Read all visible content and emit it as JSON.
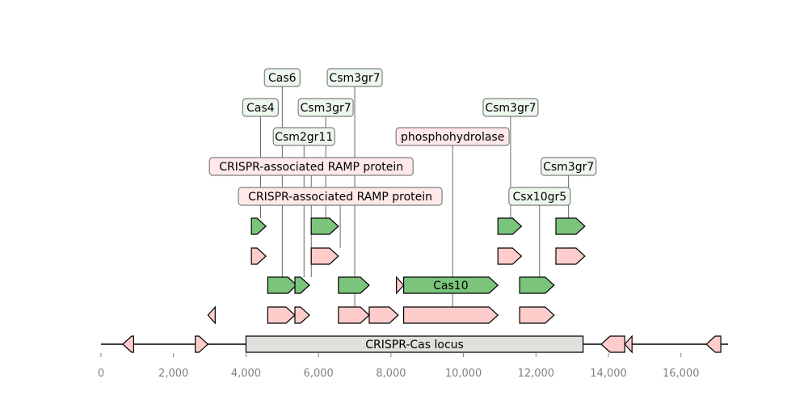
{
  "axis": {
    "ticks": [
      {
        "value": 0,
        "label": "0"
      },
      {
        "value": 2000,
        "label": "2,000"
      },
      {
        "value": 4000,
        "label": "4,000"
      },
      {
        "value": 6000,
        "label": "6,000"
      },
      {
        "value": 8000,
        "label": "8,000"
      },
      {
        "value": 10000,
        "label": "10,000"
      },
      {
        "value": 12000,
        "label": "12,000"
      },
      {
        "value": 14000,
        "label": "14,000"
      },
      {
        "value": 16000,
        "label": "16,000"
      }
    ],
    "start": 0,
    "end": 17300
  },
  "colors": {
    "green": "#7bc47b",
    "pink": "#ffcccc",
    "grey": "#e2e0dc",
    "green_label_bg": "#edf7ed",
    "pink_label_bg": "#ffe8e8",
    "label_border": "#7f7f7f",
    "tick_text": "#808080"
  },
  "backbone": [
    {
      "name": "",
      "start": 600,
      "end": 900,
      "strand": -1,
      "color": "pink"
    },
    {
      "name": "",
      "start": 2600,
      "end": 2950,
      "strand": 1,
      "color": "pink"
    },
    {
      "name": "CRISPR-Cas locus",
      "start": 4000,
      "end": 13300,
      "strand": 0,
      "color": "grey"
    },
    {
      "name": "",
      "start": 13800,
      "end": 14450,
      "strand": -1,
      "color": "pink"
    },
    {
      "name": "",
      "start": 14450,
      "end": 14650,
      "strand": -1,
      "color": "pink"
    },
    {
      "name": "",
      "start": 16700,
      "end": 17100,
      "strand": -1,
      "color": "pink"
    }
  ],
  "features": [
    {
      "level": 1,
      "name": "",
      "start": 2950,
      "end": 3150,
      "strand": -1,
      "color": "pink"
    },
    {
      "level": 1,
      "name": "",
      "start": 4600,
      "end": 5350,
      "strand": 1,
      "color": "pink"
    },
    {
      "level": 1,
      "name": "",
      "start": 5350,
      "end": 5750,
      "strand": 1,
      "color": "pink"
    },
    {
      "level": 1,
      "name": "",
      "start": 6550,
      "end": 7400,
      "strand": 1,
      "color": "pink"
    },
    {
      "level": 1,
      "name": "",
      "start": 7400,
      "end": 8200,
      "strand": 1,
      "color": "pink"
    },
    {
      "level": 1,
      "name": "",
      "start": 8350,
      "end": 10950,
      "strand": 1,
      "color": "pink"
    },
    {
      "level": 1,
      "name": "",
      "start": 11550,
      "end": 12500,
      "strand": 1,
      "color": "pink"
    },
    {
      "level": 2,
      "name": "",
      "start": 4600,
      "end": 5400,
      "strand": 1,
      "color": "green"
    },
    {
      "level": 2,
      "name": "",
      "start": 5350,
      "end": 5750,
      "strand": 1,
      "color": "green"
    },
    {
      "level": 2,
      "name": "",
      "start": 6550,
      "end": 7400,
      "strand": 1,
      "color": "green"
    },
    {
      "level": 2,
      "name": "",
      "start": 8150,
      "end": 8350,
      "strand": 1,
      "color": "pink"
    },
    {
      "level": 2,
      "name": "Cas10",
      "start": 8350,
      "end": 10950,
      "strand": 1,
      "color": "green"
    },
    {
      "level": 2,
      "name": "",
      "start": 11550,
      "end": 12500,
      "strand": 1,
      "color": "green"
    },
    {
      "level": 3,
      "name": "",
      "start": 4150,
      "end": 4550,
      "strand": 1,
      "color": "pink"
    },
    {
      "level": 3,
      "name": "",
      "start": 5800,
      "end": 6550,
      "strand": 1,
      "color": "pink"
    },
    {
      "level": 3,
      "name": "",
      "start": 10950,
      "end": 11600,
      "strand": 1,
      "color": "pink"
    },
    {
      "level": 3,
      "name": "",
      "start": 12550,
      "end": 13350,
      "strand": 1,
      "color": "pink"
    },
    {
      "level": 4,
      "name": "",
      "start": 4150,
      "end": 4550,
      "strand": 1,
      "color": "green"
    },
    {
      "level": 4,
      "name": "",
      "start": 5800,
      "end": 6550,
      "strand": 1,
      "color": "green"
    },
    {
      "level": 4,
      "name": "",
      "start": 10950,
      "end": 11600,
      "strand": 1,
      "color": "green"
    },
    {
      "level": 4,
      "name": "",
      "start": 12550,
      "end": 13350,
      "strand": 1,
      "color": "green"
    }
  ],
  "annotations": [
    {
      "text": "Cas6",
      "position": 5000,
      "anchor_level": 2,
      "row": 9,
      "color": "green"
    },
    {
      "text": "Csm3gr7",
      "position": 7000,
      "anchor_level": 1,
      "row": 9,
      "color": "green"
    },
    {
      "text": "Cas4",
      "position": 4400,
      "anchor_level": 4,
      "row": 8,
      "color": "green"
    },
    {
      "text": "Csm3gr7",
      "position": 6200,
      "anchor_level": 4,
      "row": 8,
      "color": "green"
    },
    {
      "text": "Csm3gr7",
      "position": 11300,
      "anchor_level": 4,
      "row": 8,
      "color": "green"
    },
    {
      "text": "Csm2gr11",
      "position": 5600,
      "anchor_level": 2,
      "row": 7,
      "color": "green"
    },
    {
      "text": "phosphohydrolase",
      "position": 9700,
      "anchor_level": 1,
      "row": 7,
      "color": "pink"
    },
    {
      "text": "CRISPR-associated RAMP protein",
      "position": 5800,
      "anchor_level": 2,
      "row": 6,
      "color": "pink"
    },
    {
      "text": "Csm3gr7",
      "position": 12900,
      "anchor_level": 4,
      "row": 6,
      "color": "green"
    },
    {
      "text": "CRISPR-associated RAMP protein",
      "position": 6600,
      "anchor_level": 3,
      "row": 5,
      "color": "pink"
    },
    {
      "text": "Csx10gr5",
      "position": 12100,
      "anchor_level": 2,
      "row": 5,
      "color": "green"
    }
  ]
}
